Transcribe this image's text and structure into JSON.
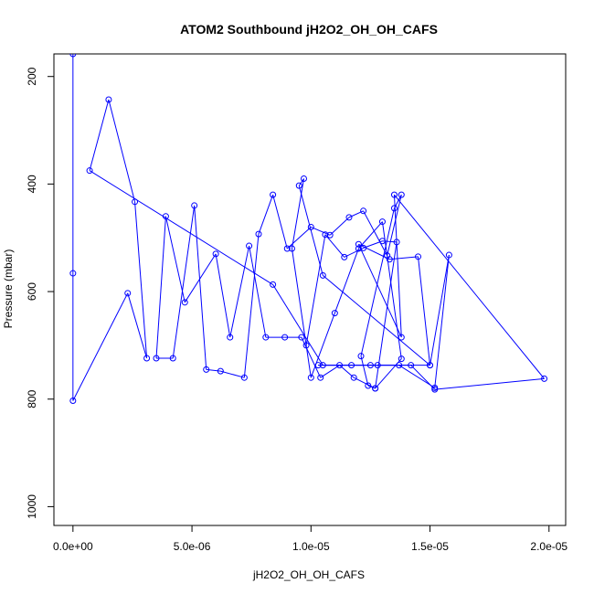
{
  "chart_data": {
    "type": "line",
    "title": "ATOM2 Southbound jH2O2_OH_OH_CAFS",
    "xlabel": "jH2O2_OH_OH_CAFS",
    "ylabel": "Pressure (mbar)",
    "xlim": [
      -8e-07,
      2.07e-05
    ],
    "ylim": [
      1035,
      158
    ],
    "y_reversed": true,
    "grid": false,
    "legend": "none",
    "x_ticks": [
      0,
      5e-06,
      1e-05,
      1.5e-05,
      2e-05
    ],
    "x_tick_labels": [
      "0.0e+00",
      "5.0e-06",
      "1.0e-05",
      "1.5e-05",
      "2.0e-05"
    ],
    "y_ticks": [
      200,
      400,
      600,
      800,
      1000
    ],
    "y_tick_labels": [
      "200",
      "400",
      "600",
      "800",
      "1000"
    ],
    "series": [
      {
        "values_x": [
          0.0,
          0.0,
          0.0,
          2.3e-06,
          3.1e-06,
          2.6e-06,
          1.5e-06,
          7e-07,
          8.4e-06,
          1.05e-05,
          1.5e-05,
          1.58e-05,
          1.52e-05,
          1.37e-05,
          1.28e-05,
          1.17e-05,
          1.03e-05,
          1.25e-05,
          1.42e-05,
          1.52e-05,
          1.98e-05,
          1.35e-05,
          1.38e-05,
          1.2e-05,
          1.33e-05,
          1.45e-05,
          1.5e-05,
          1.05e-05,
          9.5e-06,
          9.7e-06,
          9.2e-06,
          1e-05,
          1.1e-05,
          1.2e-05,
          1.3e-05,
          1.38e-05,
          1.27e-05,
          1.24e-05,
          1.21e-05,
          1.35e-05,
          1.38e-05,
          1.32e-05,
          1.22e-05,
          1.16e-05,
          1.08e-05,
          1e-05,
          9e-06,
          8.4e-06,
          7.8e-06,
          7.2e-06,
          6.2e-06,
          5.6e-06,
          5.1e-06,
          4.2e-06,
          3.5e-06,
          3.9e-06,
          4.7e-06,
          6e-06,
          6.6e-06,
          7.4e-06,
          8.1e-06,
          8.9e-06,
          9.6e-06,
          1.04e-05,
          1.12e-05,
          1.18e-05,
          1.27e-05,
          1.36e-05,
          1.3e-05,
          1.22e-05,
          1.14e-05,
          1.06e-05,
          9.8e-06
        ],
        "values_y": [
          158,
          566,
          803,
          603,
          724,
          433,
          243,
          375,
          587,
          737,
          737,
          532,
          779,
          737,
          737,
          737,
          737,
          737,
          737,
          782,
          762,
          420,
          685,
          512,
          540,
          535,
          737,
          570,
          403,
          390,
          520,
          760,
          640,
          520,
          470,
          725,
          780,
          775,
          720,
          445,
          420,
          533,
          450,
          462,
          495,
          480,
          520,
          420,
          493,
          760,
          748,
          745,
          440,
          724,
          724,
          460,
          620,
          530,
          685,
          515,
          685,
          685,
          685,
          760,
          737,
          760,
          780,
          508,
          506,
          519,
          536,
          494,
          700
        ]
      }
    ],
    "colors": {
      "series": "#0000ff",
      "axis": "#000000",
      "background": "#ffffff"
    }
  }
}
